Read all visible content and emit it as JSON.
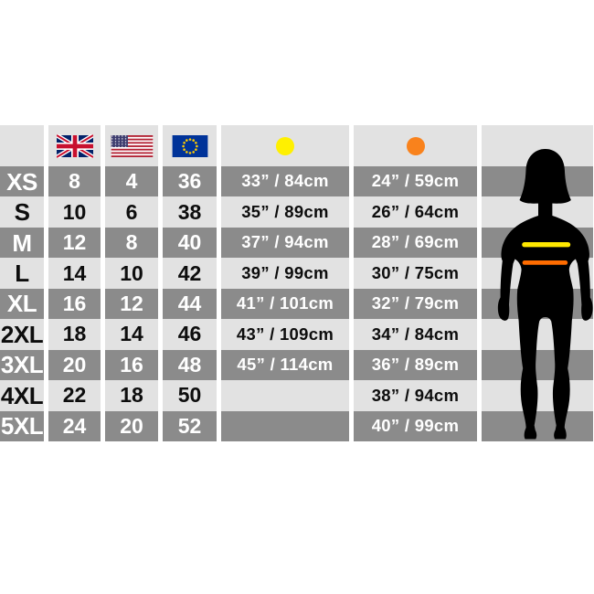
{
  "chart_data": {
    "type": "table",
    "columns": [
      {
        "key": "size",
        "header": ""
      },
      {
        "key": "uk",
        "header": "UK flag"
      },
      {
        "key": "us",
        "header": "US flag"
      },
      {
        "key": "eu",
        "header": "EU flag"
      },
      {
        "key": "bust",
        "header": "yellow dot (bust measurement)"
      },
      {
        "key": "waist",
        "header": "orange dot (waist measurement)"
      }
    ],
    "rows": [
      {
        "size": "XS",
        "uk": "8",
        "us": "4",
        "eu": "36",
        "bust": "33” / 84cm",
        "waist": "24” / 59cm"
      },
      {
        "size": "S",
        "uk": "10",
        "us": "6",
        "eu": "38",
        "bust": "35” / 89cm",
        "waist": "26” / 64cm"
      },
      {
        "size": "M",
        "uk": "12",
        "us": "8",
        "eu": "40",
        "bust": "37” / 94cm",
        "waist": "28” / 69cm"
      },
      {
        "size": "L",
        "uk": "14",
        "us": "10",
        "eu": "42",
        "bust": "39” / 99cm",
        "waist": "30” / 75cm"
      },
      {
        "size": "XL",
        "uk": "16",
        "us": "12",
        "eu": "44",
        "bust": "41” / 101cm",
        "waist": "32” / 79cm"
      },
      {
        "size": "2XL",
        "uk": "18",
        "us": "14",
        "eu": "46",
        "bust": "43” / 109cm",
        "waist": "34” / 84cm"
      },
      {
        "size": "3XL",
        "uk": "20",
        "us": "16",
        "eu": "48",
        "bust": "45” / 114cm",
        "waist": "36” / 89cm"
      },
      {
        "size": "4XL",
        "uk": "22",
        "us": "18",
        "eu": "50",
        "bust": "",
        "waist": "38” / 94cm"
      },
      {
        "size": "5XL",
        "uk": "24",
        "us": "20",
        "eu": "52",
        "bust": "",
        "waist": "40” / 99cm"
      }
    ]
  },
  "header": {
    "uk_flag_icon": "uk-flag",
    "us_flag_icon": "us-flag",
    "eu_flag_icon": "eu-flag",
    "bust_dot_color": "#fff000",
    "waist_dot_color": "#f9821c"
  },
  "figure": {
    "silhouette_icon": "woman-front-silhouette",
    "silhouette_color": "#000000",
    "bust_line_color": "#ffe800",
    "waist_line_color": "#ff6c00"
  },
  "colors": {
    "row_dark": "#8b8b8b",
    "row_light": "#e2e2e2",
    "background": "#ffffff"
  }
}
